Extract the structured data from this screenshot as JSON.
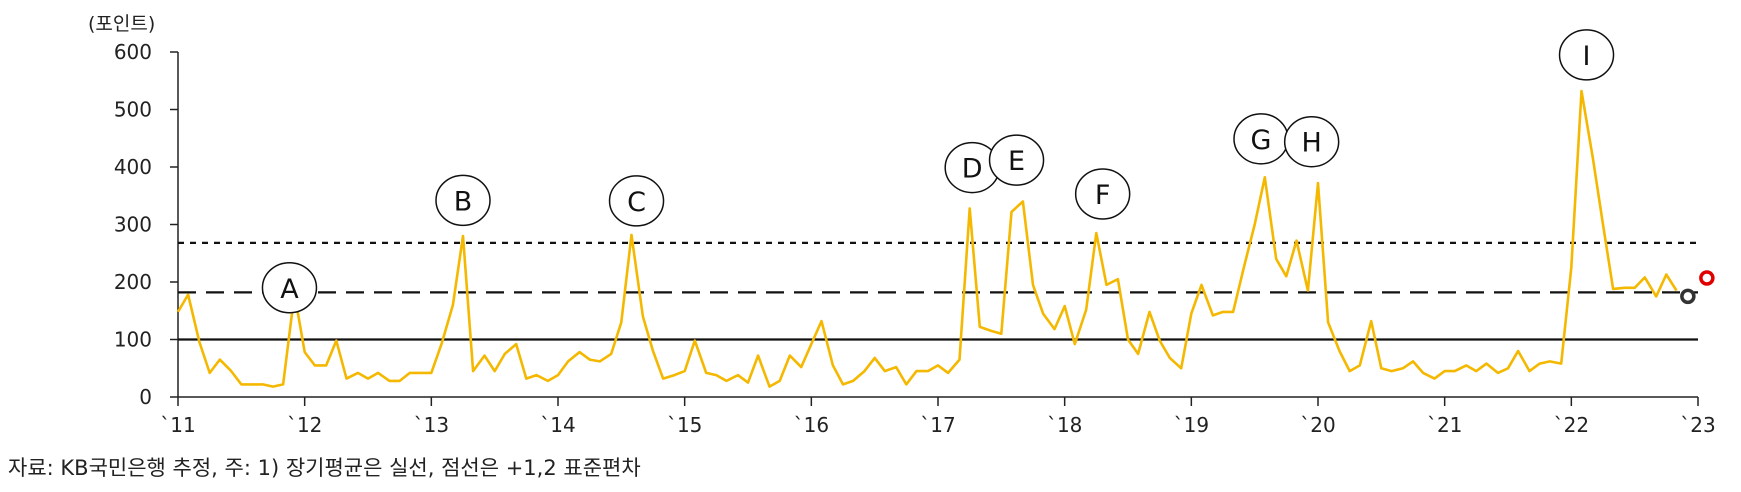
{
  "chart_data": {
    "type": "line",
    "unit_label": "(포인트)",
    "source_note": "자료: KB국민은행 추정, 주: 1) 장기평균은 실선, 점선은 +1,2 표준편차",
    "ylim": [
      0,
      600
    ],
    "yticks": [
      0,
      100,
      200,
      300,
      400,
      500,
      600
    ],
    "xlim": [
      2011,
      2023
    ],
    "xticks": [
      {
        "x": 2011,
        "label": "`11"
      },
      {
        "x": 2012,
        "label": "`12"
      },
      {
        "x": 2013,
        "label": "`13"
      },
      {
        "x": 2014,
        "label": "`14"
      },
      {
        "x": 2015,
        "label": "`15"
      },
      {
        "x": 2016,
        "label": "`16"
      },
      {
        "x": 2017,
        "label": "`17"
      },
      {
        "x": 2018,
        "label": "`18"
      },
      {
        "x": 2019,
        "label": "`19"
      },
      {
        "x": 2020,
        "label": "`20"
      },
      {
        "x": 2021,
        "label": "`21"
      },
      {
        "x": 2022,
        "label": "`22"
      },
      {
        "x": 2023,
        "label": "`23"
      }
    ],
    "grid": false,
    "reference_lines": [
      {
        "value": 100,
        "style": "solid"
      },
      {
        "value": 182,
        "style": "dashed"
      },
      {
        "value": 268,
        "style": "dotted"
      }
    ],
    "series": [
      {
        "color": "#F5B800",
        "x": [
          2011.0,
          2011.08,
          2011.17,
          2011.25,
          2011.33,
          2011.42,
          2011.5,
          2011.58,
          2011.67,
          2011.75,
          2011.83,
          2011.92,
          2012.0,
          2012.08,
          2012.17,
          2012.25,
          2012.33,
          2012.42,
          2012.5,
          2012.58,
          2012.67,
          2012.75,
          2012.83,
          2012.92,
          2013.0,
          2013.08,
          2013.17,
          2013.25,
          2013.33,
          2013.42,
          2013.5,
          2013.58,
          2013.67,
          2013.75,
          2013.83,
          2013.92,
          2014.0,
          2014.08,
          2014.17,
          2014.25,
          2014.33,
          2014.42,
          2014.5,
          2014.58,
          2014.67,
          2014.75,
          2014.83,
          2014.92,
          2015.0,
          2015.08,
          2015.17,
          2015.25,
          2015.33,
          2015.42,
          2015.5,
          2015.58,
          2015.67,
          2015.75,
          2015.83,
          2015.92,
          2016.0,
          2016.08,
          2016.17,
          2016.25,
          2016.33,
          2016.42,
          2016.5,
          2016.58,
          2016.67,
          2016.75,
          2016.83,
          2016.92,
          2017.0,
          2017.08,
          2017.17,
          2017.25,
          2017.33,
          2017.42,
          2017.5,
          2017.58,
          2017.67,
          2017.75,
          2017.83,
          2017.92,
          2018.0,
          2018.08,
          2018.17,
          2018.25,
          2018.33,
          2018.42,
          2018.5,
          2018.58,
          2018.67,
          2018.75,
          2018.83,
          2018.92,
          2019.0,
          2019.08,
          2019.17,
          2019.25,
          2019.33,
          2019.42,
          2019.5,
          2019.58,
          2019.67,
          2019.75,
          2019.83,
          2019.92,
          2020.0,
          2020.08,
          2020.17,
          2020.25,
          2020.33,
          2020.42,
          2020.5,
          2020.58,
          2020.67,
          2020.75,
          2020.83,
          2020.92,
          2021.0,
          2021.08,
          2021.17,
          2021.25,
          2021.33,
          2021.42,
          2021.5,
          2021.58,
          2021.67,
          2021.75,
          2021.83,
          2021.92,
          2022.0,
          2022.08,
          2022.17,
          2022.25,
          2022.33,
          2022.42,
          2022.5,
          2022.58,
          2022.67,
          2022.75,
          2022.83
        ],
        "values": [
          148,
          178,
          95,
          42,
          65,
          45,
          22,
          22,
          22,
          18,
          22,
          180,
          78,
          55,
          55,
          98,
          32,
          42,
          32,
          42,
          28,
          28,
          42,
          42,
          42,
          92,
          160,
          280,
          45,
          72,
          45,
          75,
          92,
          32,
          38,
          28,
          38,
          62,
          78,
          65,
          62,
          75,
          130,
          282,
          140,
          80,
          32,
          38,
          45,
          98,
          42,
          38,
          28,
          38,
          25,
          72,
          18,
          28,
          72,
          52,
          92,
          132,
          55,
          22,
          28,
          45,
          68,
          45,
          52,
          22,
          45,
          45,
          55,
          42,
          65,
          328,
          122,
          115,
          110,
          322,
          340,
          195,
          145,
          118,
          158,
          92,
          152,
          285,
          195,
          205,
          100,
          75,
          148,
          98,
          68,
          50,
          145,
          195,
          142,
          148,
          148,
          230,
          300,
          382,
          240,
          210,
          272,
          185,
          372,
          130,
          80,
          45,
          55,
          132,
          50,
          45,
          50,
          62,
          42,
          32,
          45,
          45,
          55,
          45,
          58,
          42,
          50,
          80,
          45,
          58,
          62,
          58,
          225,
          532,
          415,
          300,
          188,
          190,
          190,
          208,
          175,
          213,
          185
        ]
      }
    ],
    "end_markers": [
      {
        "x": 2022.92,
        "value": 175,
        "color": "#333333"
      },
      {
        "x": 2023.07,
        "value": 207,
        "color": "#E00000"
      }
    ],
    "annotations": [
      {
        "label": "A",
        "x": 2011.88,
        "value": 190
      },
      {
        "label": "B",
        "x": 2013.25,
        "value": 342
      },
      {
        "label": "C",
        "x": 2014.62,
        "value": 341
      },
      {
        "label": "D",
        "x": 2017.27,
        "value": 399
      },
      {
        "label": "E",
        "x": 2017.62,
        "value": 412
      },
      {
        "label": "F",
        "x": 2018.3,
        "value": 353
      },
      {
        "label": "G",
        "x": 2019.55,
        "value": 449
      },
      {
        "label": "H",
        "x": 2019.95,
        "value": 444
      },
      {
        "label": "I",
        "x": 2022.12,
        "value": 595
      }
    ]
  }
}
